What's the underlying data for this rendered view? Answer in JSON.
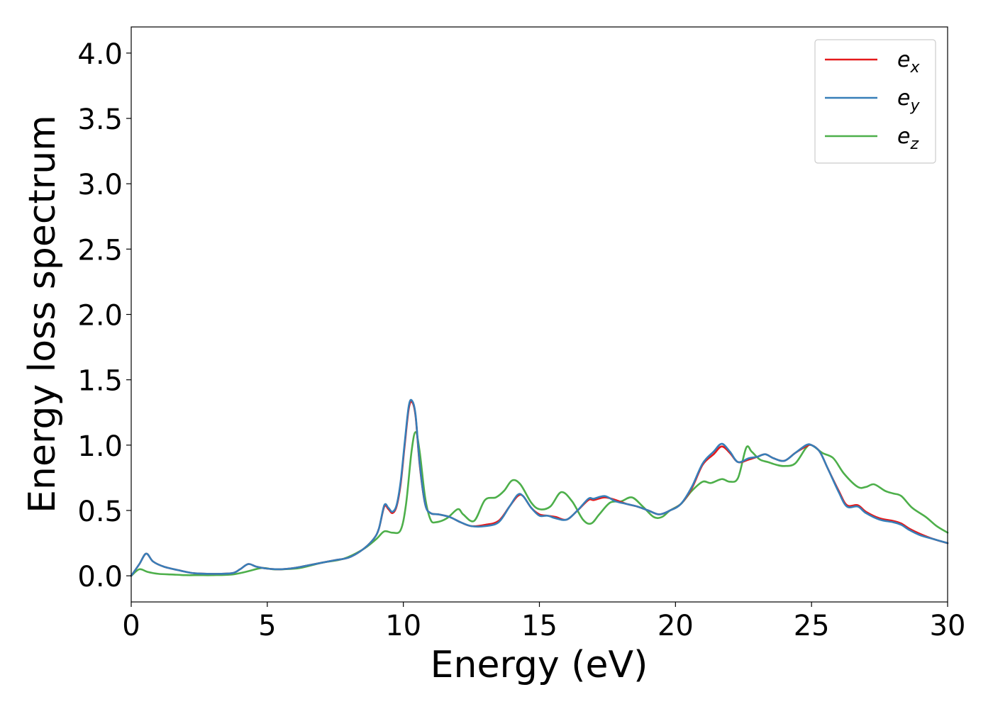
{
  "chart_data": {
    "type": "line",
    "title": "",
    "xlabel": "Energy (eV)",
    "ylabel": "Energy loss spectrum",
    "xlim": [
      0,
      30
    ],
    "ylim": [
      -0.2,
      4.2
    ],
    "xticks": [
      0,
      5,
      10,
      15,
      20,
      25,
      30
    ],
    "xtick_labels": [
      "0",
      "5",
      "10",
      "15",
      "20",
      "25",
      "30"
    ],
    "yticks": [
      0.0,
      0.5,
      1.0,
      1.5,
      2.0,
      2.5,
      3.0,
      3.5,
      4.0
    ],
    "ytick_labels": [
      "0.0",
      "0.5",
      "1.0",
      "1.5",
      "2.0",
      "2.5",
      "3.0",
      "3.5",
      "4.0"
    ],
    "grid": false,
    "legend_position": "top-right",
    "series": [
      {
        "name": "e",
        "subscript": "x",
        "color": "#e41a1c",
        "x": [
          0,
          0.3,
          0.55,
          0.8,
          1.2,
          1.8,
          2.3,
          3.0,
          3.7,
          4.0,
          4.3,
          4.6,
          5.0,
          5.5,
          6.0,
          6.5,
          7.0,
          7.5,
          8.0,
          8.5,
          8.9,
          9.1,
          9.3,
          9.45,
          9.6,
          9.75,
          9.9,
          10.05,
          10.2,
          10.32,
          10.45,
          10.6,
          10.8,
          11.0,
          11.3,
          11.7,
          12.1,
          12.5,
          13.0,
          13.5,
          13.9,
          14.2,
          14.4,
          14.7,
          15.0,
          15.3,
          15.6,
          16.0,
          16.4,
          16.8,
          17.0,
          17.4,
          17.8,
          18.2,
          18.6,
          19.0,
          19.4,
          19.8,
          20.2,
          20.6,
          21.0,
          21.4,
          21.7,
          22.0,
          22.3,
          22.7,
          23.0,
          23.3,
          23.6,
          24.0,
          24.4,
          24.8,
          25.0,
          25.3,
          25.6,
          26.0,
          26.3,
          26.7,
          27.0,
          27.5,
          28.0,
          28.3,
          28.6,
          29.0,
          29.5,
          30.0
        ],
        "y": [
          0.0,
          0.09,
          0.17,
          0.11,
          0.07,
          0.04,
          0.02,
          0.015,
          0.02,
          0.05,
          0.09,
          0.07,
          0.055,
          0.05,
          0.06,
          0.08,
          0.1,
          0.12,
          0.14,
          0.2,
          0.28,
          0.36,
          0.53,
          0.51,
          0.48,
          0.53,
          0.7,
          1.0,
          1.28,
          1.33,
          1.22,
          0.85,
          0.55,
          0.48,
          0.47,
          0.45,
          0.41,
          0.38,
          0.39,
          0.42,
          0.53,
          0.61,
          0.61,
          0.52,
          0.47,
          0.46,
          0.45,
          0.43,
          0.5,
          0.58,
          0.58,
          0.6,
          0.58,
          0.55,
          0.53,
          0.5,
          0.47,
          0.5,
          0.55,
          0.67,
          0.85,
          0.93,
          0.99,
          0.94,
          0.87,
          0.89,
          0.91,
          0.93,
          0.9,
          0.88,
          0.94,
          0.99,
          1.0,
          0.95,
          0.82,
          0.65,
          0.54,
          0.54,
          0.49,
          0.44,
          0.42,
          0.4,
          0.36,
          0.32,
          0.28,
          0.25
        ]
      },
      {
        "name": "e",
        "subscript": "y",
        "color": "#377eb8",
        "x": [
          0,
          0.3,
          0.55,
          0.8,
          1.2,
          1.8,
          2.3,
          3.0,
          3.7,
          4.0,
          4.3,
          4.6,
          5.0,
          5.5,
          6.0,
          6.5,
          7.0,
          7.5,
          8.0,
          8.5,
          8.9,
          9.1,
          9.3,
          9.45,
          9.6,
          9.75,
          9.9,
          10.05,
          10.2,
          10.32,
          10.45,
          10.6,
          10.8,
          11.0,
          11.3,
          11.7,
          12.1,
          12.5,
          13.0,
          13.5,
          13.9,
          14.2,
          14.4,
          14.7,
          15.0,
          15.3,
          15.6,
          16.0,
          16.4,
          16.8,
          17.0,
          17.4,
          17.8,
          18.2,
          18.6,
          19.0,
          19.4,
          19.8,
          20.2,
          20.6,
          21.0,
          21.4,
          21.7,
          22.0,
          22.3,
          22.7,
          23.0,
          23.3,
          23.6,
          24.0,
          24.4,
          24.8,
          25.0,
          25.3,
          25.6,
          26.0,
          26.3,
          26.7,
          27.0,
          27.5,
          28.0,
          28.3,
          28.6,
          29.0,
          29.5,
          30.0
        ],
        "y": [
          0.0,
          0.09,
          0.17,
          0.11,
          0.07,
          0.04,
          0.02,
          0.015,
          0.02,
          0.05,
          0.09,
          0.07,
          0.055,
          0.05,
          0.06,
          0.08,
          0.1,
          0.12,
          0.14,
          0.2,
          0.28,
          0.36,
          0.54,
          0.52,
          0.49,
          0.54,
          0.72,
          1.02,
          1.3,
          1.34,
          1.23,
          0.86,
          0.55,
          0.48,
          0.47,
          0.45,
          0.41,
          0.38,
          0.38,
          0.41,
          0.53,
          0.62,
          0.61,
          0.52,
          0.46,
          0.46,
          0.44,
          0.43,
          0.5,
          0.59,
          0.59,
          0.61,
          0.57,
          0.55,
          0.53,
          0.5,
          0.47,
          0.5,
          0.55,
          0.68,
          0.86,
          0.95,
          1.01,
          0.95,
          0.87,
          0.9,
          0.91,
          0.93,
          0.9,
          0.88,
          0.94,
          1.0,
          1.0,
          0.95,
          0.82,
          0.64,
          0.53,
          0.53,
          0.48,
          0.43,
          0.41,
          0.39,
          0.35,
          0.31,
          0.28,
          0.25
        ]
      },
      {
        "name": "e",
        "subscript": "z",
        "color": "#4daf4a",
        "x": [
          0,
          0.3,
          0.6,
          1.0,
          1.5,
          2.0,
          2.5,
          3.0,
          3.7,
          4.2,
          4.8,
          5.2,
          5.6,
          6.2,
          7.0,
          7.8,
          8.5,
          9.0,
          9.3,
          9.6,
          9.9,
          10.1,
          10.3,
          10.45,
          10.6,
          10.8,
          11.0,
          11.2,
          11.6,
          12.0,
          12.2,
          12.6,
          13.0,
          13.4,
          13.7,
          14.0,
          14.3,
          14.7,
          15.0,
          15.4,
          15.8,
          16.2,
          16.6,
          16.9,
          17.2,
          17.6,
          18.0,
          18.4,
          18.8,
          19.2,
          19.5,
          19.8,
          20.2,
          20.6,
          21.0,
          21.3,
          21.7,
          22.0,
          22.3,
          22.6,
          22.8,
          23.1,
          23.4,
          23.7,
          24.0,
          24.4,
          24.8,
          25.0,
          25.4,
          25.8,
          26.2,
          26.7,
          27.0,
          27.3,
          27.7,
          28.0,
          28.3,
          28.7,
          29.2,
          29.6,
          30.0
        ],
        "y": [
          0.0,
          0.05,
          0.03,
          0.015,
          0.01,
          0.005,
          0.005,
          0.005,
          0.01,
          0.03,
          0.06,
          0.05,
          0.05,
          0.06,
          0.1,
          0.13,
          0.2,
          0.28,
          0.34,
          0.33,
          0.35,
          0.55,
          0.95,
          1.1,
          0.95,
          0.6,
          0.43,
          0.41,
          0.44,
          0.51,
          0.47,
          0.42,
          0.58,
          0.6,
          0.65,
          0.73,
          0.7,
          0.56,
          0.51,
          0.53,
          0.64,
          0.57,
          0.43,
          0.4,
          0.47,
          0.56,
          0.57,
          0.6,
          0.53,
          0.45,
          0.45,
          0.5,
          0.55,
          0.65,
          0.72,
          0.71,
          0.74,
          0.72,
          0.75,
          0.98,
          0.95,
          0.89,
          0.87,
          0.85,
          0.84,
          0.86,
          0.98,
          1.0,
          0.94,
          0.9,
          0.78,
          0.68,
          0.68,
          0.7,
          0.65,
          0.63,
          0.61,
          0.52,
          0.45,
          0.38,
          0.33
        ]
      }
    ]
  }
}
